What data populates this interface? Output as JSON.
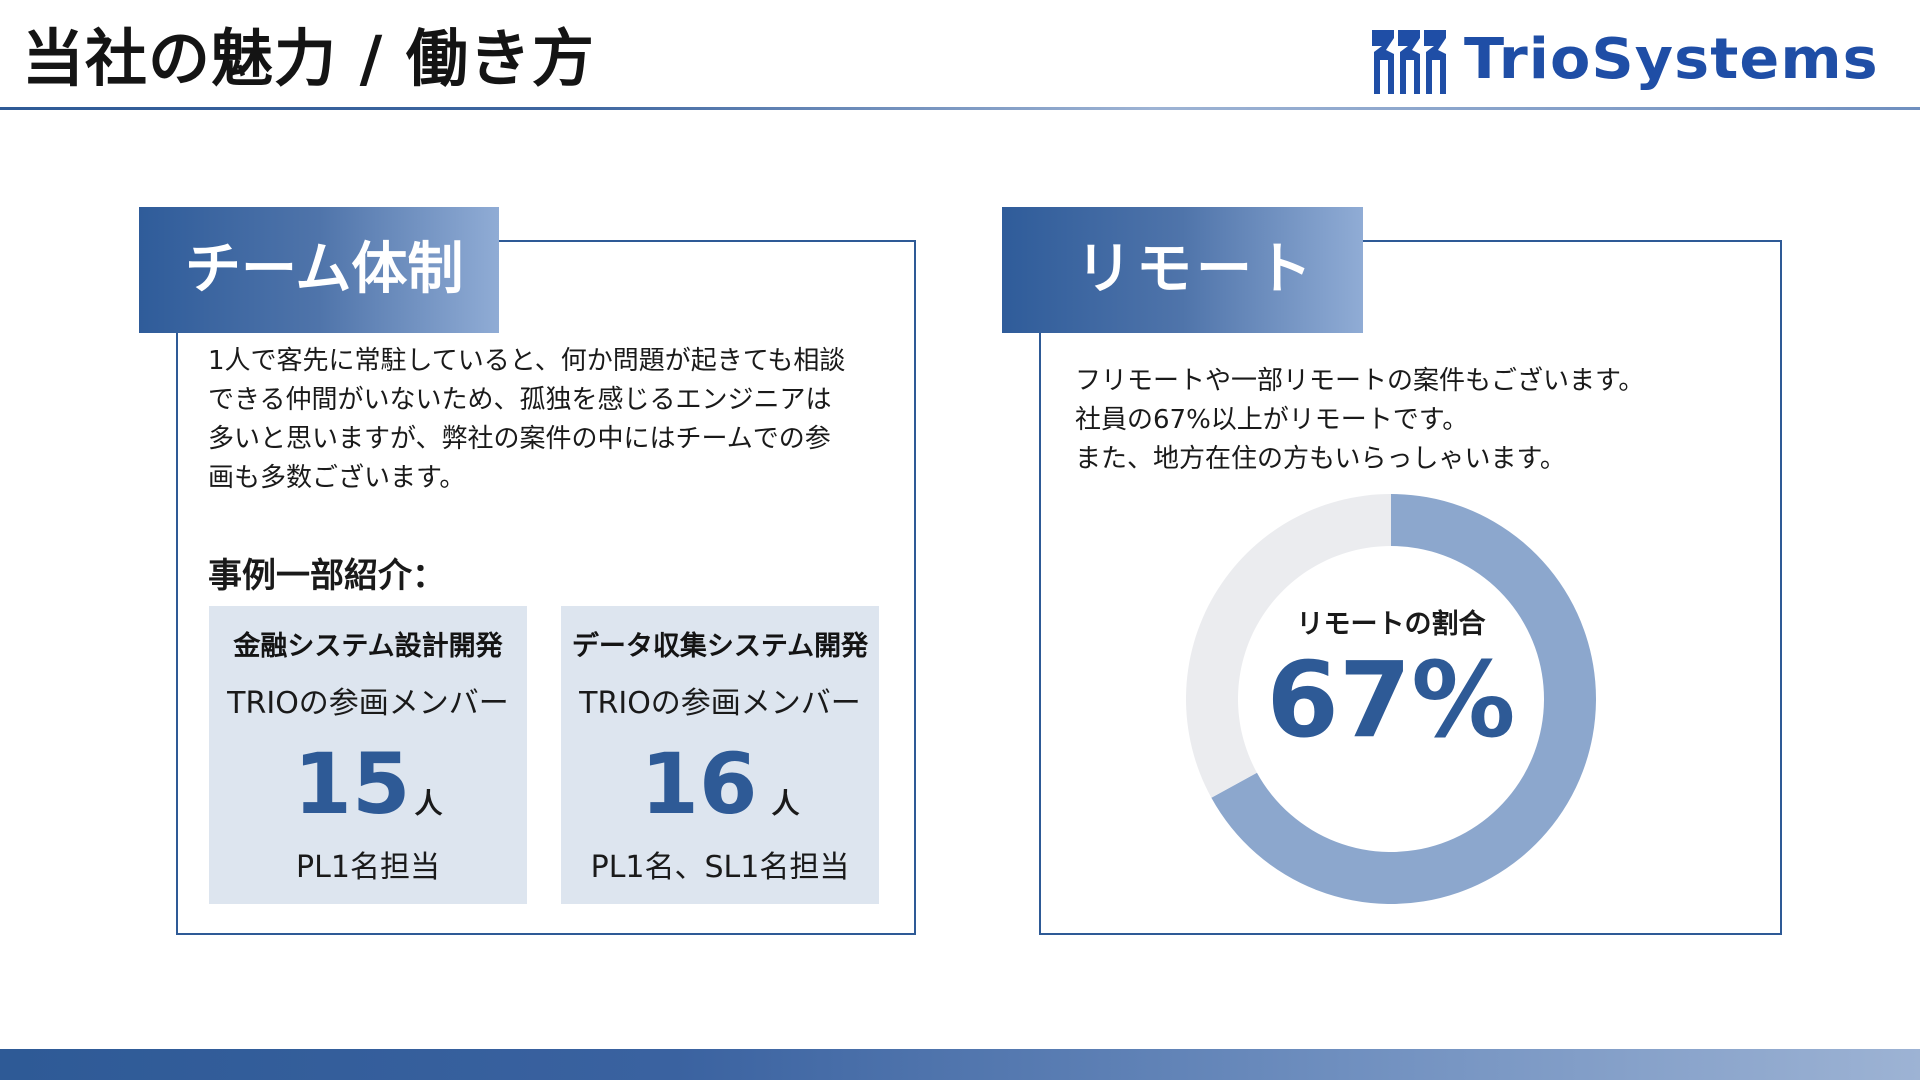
{
  "header": {
    "title": "当社の魅力 / 働き方",
    "logo_text": "TrioSystems",
    "accent_color": "#2e5a96"
  },
  "team": {
    "heading": "チーム体制",
    "description_lines": [
      "1人で客先に常駐していると、何か問題が起きても相談",
      "できる仲間がいないため、孤独を感じるエンジニアは",
      "多いと思いますが、弊社の案件の中にはチームでの参",
      "画も多数ございます。"
    ],
    "cases_heading": "事例一部紹介：",
    "cases": [
      {
        "title": "金融システム設計開発",
        "members_label": "TRIOの参画メンバー",
        "count": "15",
        "unit": "人",
        "role": "PL1名担当"
      },
      {
        "title": "データ収集システム開発",
        "members_label": "TRIOの参画メンバー",
        "count": "16",
        "unit": "人",
        "role": "PL1名、SL1名担当"
      }
    ]
  },
  "remote": {
    "heading": "リモート",
    "description_lines": [
      "フリモートや一部リモートの案件もございます。",
      "社員の67%以上がリモートです。",
      "また、地方在住の方もいらっしゃいます。"
    ]
  },
  "chart_data": {
    "type": "pie",
    "style": "donut",
    "title": "リモートの割合",
    "center_value": "67%",
    "series": [
      {
        "name": "",
        "value": 67,
        "color": "#8ca7cd"
      },
      {
        "name": "",
        "value": 33,
        "color": "#ebecef"
      }
    ]
  }
}
